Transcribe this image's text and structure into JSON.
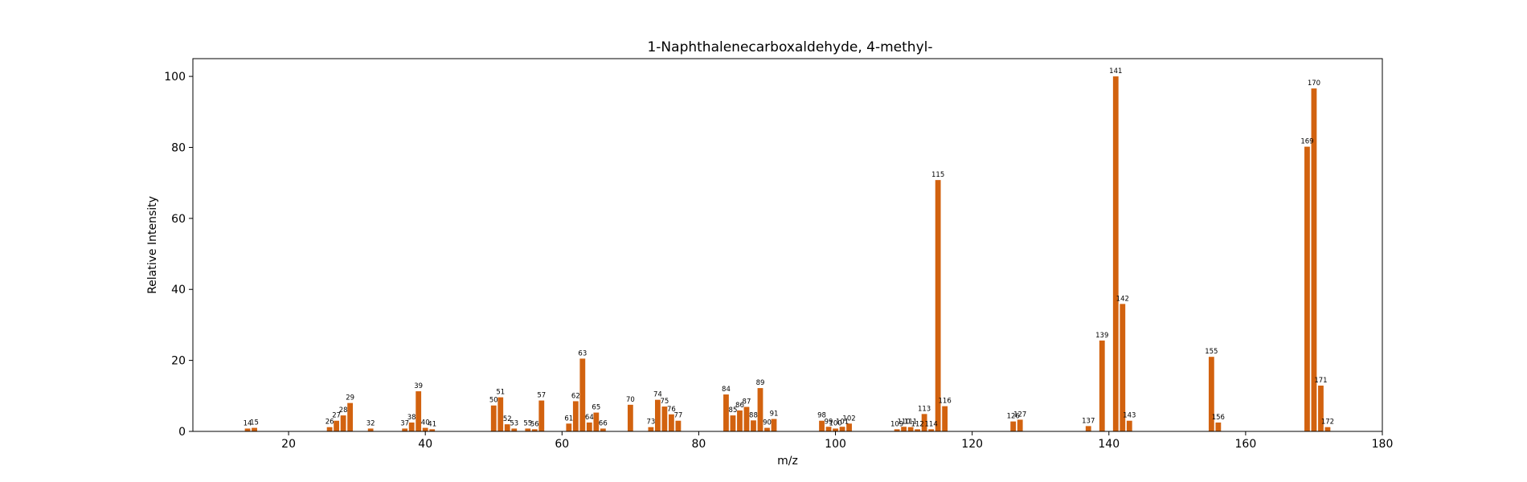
{
  "chart_data": {
    "type": "bar",
    "title": "1-Naphthalenecarboxaldehyde, 4-methyl-",
    "xlabel": "m/z",
    "ylabel": "Relative Intensity",
    "xlim": [
      6,
      180
    ],
    "ylim": [
      0,
      105
    ],
    "xticks": [
      20,
      40,
      60,
      80,
      100,
      120,
      140,
      160,
      180
    ],
    "yticks": [
      0,
      20,
      40,
      60,
      80,
      100
    ],
    "grid": false,
    "bar_color": "#d2620f",
    "x": [
      14,
      15,
      26,
      27,
      28,
      29,
      32,
      37,
      38,
      39,
      40,
      41,
      50,
      51,
      52,
      53,
      55,
      56,
      57,
      61,
      62,
      63,
      64,
      65,
      66,
      70,
      73,
      74,
      75,
      76,
      77,
      84,
      85,
      86,
      87,
      88,
      89,
      90,
      91,
      98,
      99,
      100,
      101,
      102,
      109,
      110,
      111,
      112,
      113,
      114,
      115,
      116,
      126,
      127,
      137,
      139,
      141,
      142,
      143,
      155,
      156,
      169,
      170,
      171,
      172
    ],
    "values": [
      0.8,
      1.0,
      1.2,
      3.0,
      4.5,
      8.0,
      0.8,
      0.8,
      2.5,
      11.3,
      1.0,
      0.6,
      7.3,
      9.6,
      2.0,
      0.8,
      0.8,
      0.6,
      8.7,
      2.2,
      8.5,
      20.5,
      2.5,
      5.3,
      0.8,
      7.5,
      1.2,
      8.9,
      7.0,
      4.8,
      3.0,
      10.4,
      4.5,
      5.9,
      6.9,
      3.1,
      12.2,
      1.0,
      3.5,
      3.0,
      1.3,
      0.8,
      1.3,
      2.2,
      0.6,
      1.3,
      1.2,
      0.6,
      4.9,
      0.6,
      70.8,
      7.1,
      2.8,
      3.3,
      1.5,
      25.6,
      100.0,
      35.9,
      3.0,
      21.0,
      2.5,
      80.2,
      96.6,
      12.9,
      1.2
    ],
    "labels": [
      "14",
      "15",
      "26",
      "27",
      "28",
      "29",
      "32",
      "37",
      "38",
      "39",
      "40",
      "41",
      "50",
      "51",
      "52",
      "53",
      "55",
      "56",
      "57",
      "61",
      "62",
      "63",
      "64",
      "65",
      "66",
      "70",
      "73",
      "74",
      "75",
      "76",
      "77",
      "84",
      "85",
      "86",
      "87",
      "88",
      "89",
      "90",
      "91",
      "98",
      "99",
      "100",
      "101",
      "102",
      "109",
      "110",
      "111",
      "112",
      "113",
      "114",
      "115",
      "116",
      "126",
      "127",
      "137",
      "139",
      "141",
      "142",
      "143",
      "155",
      "156",
      "169",
      "170",
      "171",
      "172"
    ]
  }
}
